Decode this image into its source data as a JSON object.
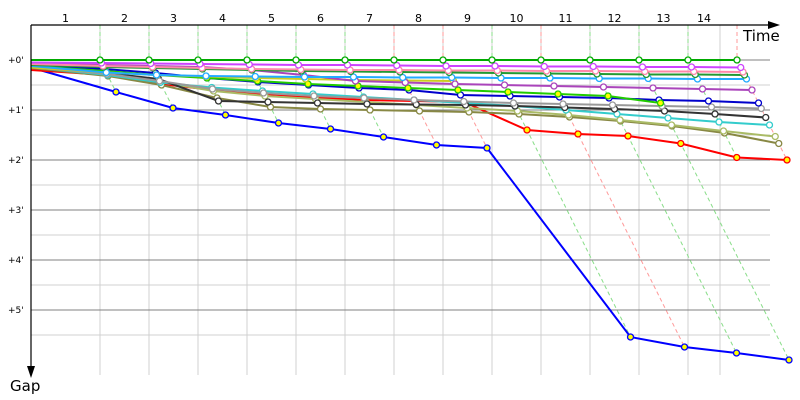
{
  "chart_data": {
    "type": "line",
    "xlabel": "Time",
    "ylabel": "Gap",
    "x_tick_labels": [
      "1",
      "2",
      "3",
      "4",
      "5",
      "6",
      "7",
      "8",
      "9",
      "10",
      "11",
      "12",
      "13",
      "14"
    ],
    "y_tick_labels": [
      "+0'",
      "+1'",
      "+2'",
      "+3'",
      "+4'",
      "+5'"
    ],
    "y_unit": "minutes",
    "ylim": [
      0,
      6.3
    ],
    "grid": true,
    "lap_line_colors": [
      "#88dd88",
      "#88dd88",
      "#88dd88",
      "#88dd88",
      "#88dd88",
      "#88dd88",
      "#ff9999",
      "#ff9999",
      "#88dd88",
      "#ff9999",
      "#88dd88",
      "#88dd88",
      "#88dd88",
      "#ff9999"
    ],
    "series": [
      {
        "color": "#00aa00",
        "marker_fill": "#ffffff",
        "gaps": [
          0,
          0,
          0,
          0,
          0,
          0,
          0,
          0,
          0,
          0,
          0,
          0,
          0,
          0,
          0
        ]
      },
      {
        "color": "#cc44ff",
        "marker_fill": "#ffffff",
        "gaps": [
          0.05,
          0.06,
          0.07,
          0.08,
          0.09,
          0.1,
          0.1,
          0.11,
          0.12,
          0.12,
          0.13,
          0.13,
          0.14,
          0.14,
          0.15
        ]
      },
      {
        "color": "#ff88aa",
        "marker_fill": "#ffffff",
        "gaps": [
          0.08,
          0.12,
          0.14,
          0.16,
          0.18,
          0.19,
          0.2,
          0.2,
          0.21,
          0.21,
          0.22,
          0.22,
          0.23,
          0.23,
          0.24
        ]
      },
      {
        "color": "#229933",
        "marker_fill": "#ffffff",
        "gaps": [
          0.1,
          0.14,
          0.16,
          0.18,
          0.2,
          0.22,
          0.23,
          0.24,
          0.25,
          0.26,
          0.27,
          0.28,
          0.29,
          0.29,
          0.3
        ]
      },
      {
        "color": "#22aaff",
        "marker_fill": "#ffffff",
        "gaps": [
          0.12,
          0.25,
          0.3,
          0.32,
          0.33,
          0.34,
          0.34,
          0.35,
          0.35,
          0.36,
          0.36,
          0.37,
          0.37,
          0.38,
          0.38
        ]
      },
      {
        "color": "#aa44bb",
        "marker_fill": "#ffffff",
        "gaps": [
          0.06,
          0.1,
          0.12,
          0.14,
          0.2,
          0.3,
          0.42,
          0.45,
          0.48,
          0.5,
          0.52,
          0.54,
          0.56,
          0.58,
          0.6
        ]
      },
      {
        "color": "#cccc22",
        "marker_fill": "#ffffff",
        "gaps": [
          0.15,
          0.25,
          0.3,
          0.33,
          0.36,
          0.38,
          0.4,
          0.41,
          0.42
        ]
      },
      {
        "color": "#22cc00",
        "marker_fill": "#ffff00",
        "gaps": [
          0.12,
          0.22,
          0.3,
          0.36,
          0.42,
          0.48,
          0.52,
          0.56,
          0.6,
          0.64,
          0.68,
          0.72,
          0.86
        ]
      },
      {
        "color": "#0000cc",
        "marker_fill": "#ffffff",
        "gaps": [
          0.1,
          0.18,
          0.26,
          0.36,
          0.44,
          0.5,
          0.56,
          0.6,
          0.7,
          0.72,
          0.74,
          0.76,
          0.8,
          0.82,
          0.86
        ]
      },
      {
        "color": "#999999",
        "marker_fill": "#ffffff",
        "gaps": [
          0.14,
          0.28,
          0.42,
          0.58,
          0.66,
          0.72,
          0.76,
          0.8,
          0.83,
          0.86,
          0.88,
          0.9,
          0.92,
          0.94,
          0.97
        ]
      },
      {
        "color": "#333333",
        "marker_fill": "#ffffff",
        "gaps": [
          0.12,
          0.26,
          0.38,
          0.82,
          0.84,
          0.86,
          0.88,
          0.89,
          0.9,
          0.92,
          0.95,
          0.98,
          1.02,
          1.08,
          1.15
        ]
      },
      {
        "color": "#33cccc",
        "marker_fill": "#ffffff",
        "gaps": [
          0.14,
          0.3,
          0.45,
          0.55,
          0.62,
          0.68,
          0.74,
          0.8,
          0.86,
          0.92,
          1.0,
          1.08,
          1.16,
          1.24,
          1.3
        ]
      },
      {
        "color": "#aabb66",
        "marker_fill": "#ffffff",
        "gaps": [
          0.12,
          0.28,
          0.44,
          0.62,
          0.72,
          0.78,
          0.84,
          0.9,
          0.96,
          1.02,
          1.1,
          1.2,
          1.3,
          1.42,
          1.53
        ]
      },
      {
        "color": "#888844",
        "marker_fill": "#ffffff",
        "gaps": [
          0.16,
          0.32,
          0.5,
          0.76,
          0.94,
          0.98,
          1.0,
          1.02,
          1.04,
          1.08,
          1.14,
          1.22,
          1.32,
          1.46,
          1.67
        ]
      },
      {
        "color": "#ff0000",
        "marker_fill": "#ffff00",
        "gaps": [
          0.2,
          0.3,
          0.48,
          0.6,
          0.68,
          0.75,
          0.8,
          0.82,
          0.84,
          1.4,
          1.48,
          1.52,
          1.67,
          1.95,
          2.0
        ]
      },
      {
        "color": "#0000ff",
        "marker_fill": "#ffff00",
        "gaps": [
          0.15,
          0.64,
          0.96,
          1.1,
          1.26,
          1.38,
          1.54,
          1.7,
          1.76,
          5.54,
          5.74,
          5.86,
          6.0
        ]
      }
    ]
  }
}
